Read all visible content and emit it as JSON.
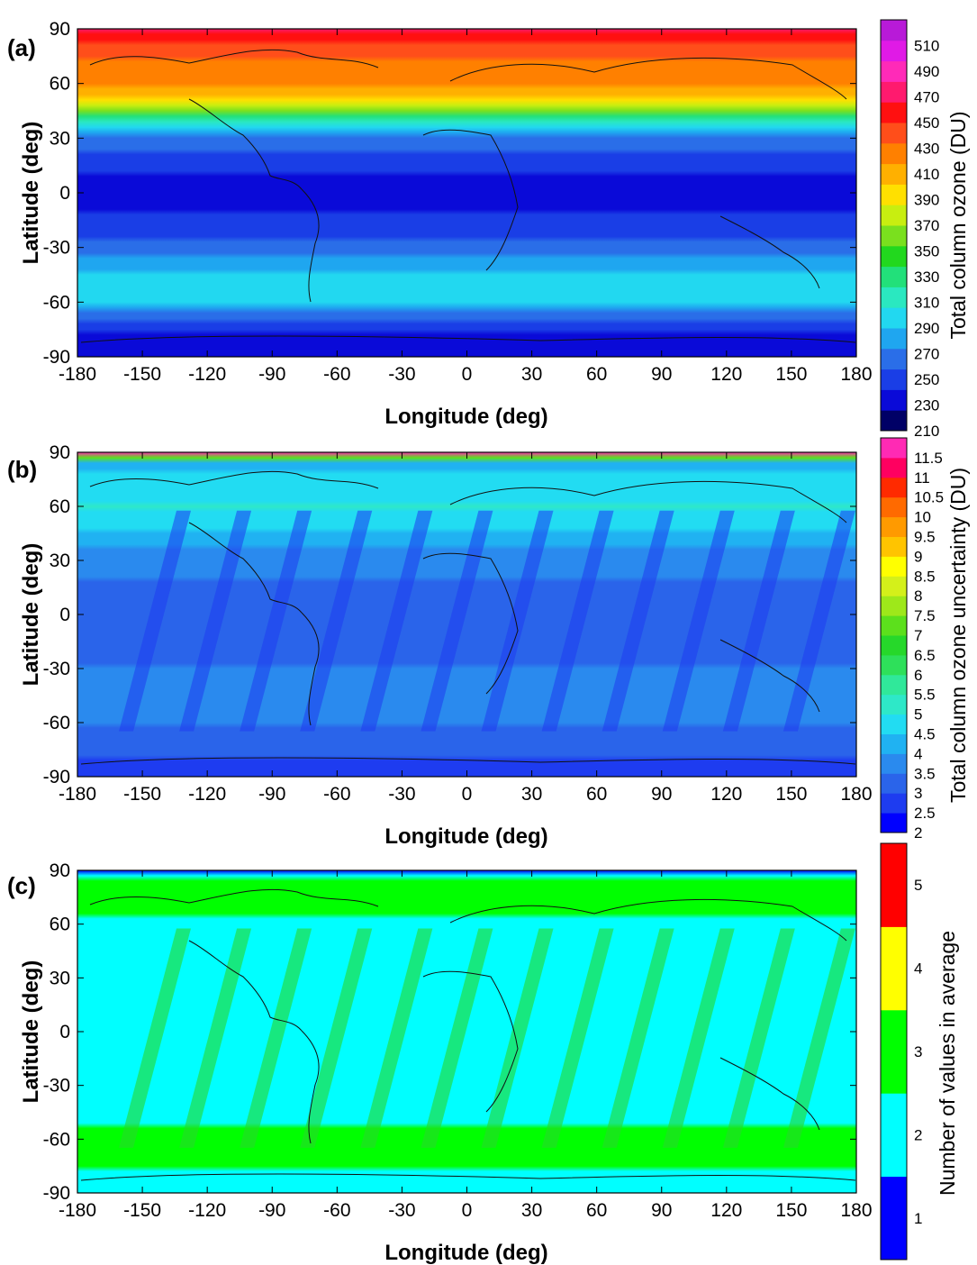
{
  "chart_data": [
    {
      "panel_label": "(a)",
      "type": "heatmap",
      "xlabel": "Longitude (deg)",
      "ylabel": "Latitude (deg)",
      "xlim": [
        -180,
        180
      ],
      "ylim": [
        -90,
        90
      ],
      "x_ticks": [
        "-180",
        "-150",
        "-120",
        "-90",
        "-60",
        "-30",
        "0",
        "30",
        "60",
        "90",
        "120",
        "150",
        "180"
      ],
      "y_ticks": [
        "90",
        "60",
        "30",
        "0",
        "-30",
        "-60",
        "-90"
      ],
      "colorbar": {
        "title": "Total column ozone (DU)",
        "range": [
          210,
          530
        ],
        "labels": [
          "510",
          "490",
          "470",
          "450",
          "430",
          "410",
          "390",
          "370",
          "350",
          "330",
          "310",
          "290",
          "270",
          "250",
          "230",
          "210"
        ],
        "colors": [
          "#000066",
          "#0a0ad8",
          "#1a3ee6",
          "#2a6ee8",
          "#1fa6f0",
          "#22d8f0",
          "#2ae8c0",
          "#22e07a",
          "#22d81e",
          "#7ae01e",
          "#c8ee10",
          "#ffe000",
          "#ffb000",
          "#ff8000",
          "#ff4e1a",
          "#ff1010",
          "#ff1a6e",
          "#ff2ab8",
          "#e01ae6",
          "#b81ad8"
        ]
      },
      "zonal_profile": {
        "lat": [
          -90,
          -80,
          -70,
          -60,
          -50,
          -40,
          -30,
          -20,
          -10,
          0,
          10,
          20,
          30,
          40,
          50,
          60,
          70,
          80,
          90
        ],
        "value": [
          230,
          235,
          255,
          295,
          300,
          282,
          262,
          250,
          242,
          240,
          242,
          252,
          270,
          320,
          390,
          420,
          430,
          445,
          470
        ]
      }
    },
    {
      "panel_label": "(b)",
      "type": "heatmap",
      "xlabel": "Longitude (deg)",
      "ylabel": "Latitude (deg)",
      "xlim": [
        -180,
        180
      ],
      "ylim": [
        -90,
        90
      ],
      "x_ticks": [
        "-180",
        "-150",
        "-120",
        "-90",
        "-60",
        "-30",
        "0",
        "30",
        "60",
        "90",
        "120",
        "150",
        "180"
      ],
      "y_ticks": [
        "90",
        "60",
        "30",
        "0",
        "-30",
        "-60",
        "-90"
      ],
      "colorbar": {
        "title": "Total column ozone uncertainty (DU)",
        "range": [
          2,
          12
        ],
        "labels": [
          "11.5",
          "11",
          "10.5",
          "10",
          "9.5",
          "9",
          "8.5",
          "8",
          "7.5",
          "7",
          "6.5",
          "6",
          "5.5",
          "5",
          "4.5",
          "4",
          "3.5",
          "3",
          "2.5",
          "2"
        ],
        "colors": [
          "#0000ff",
          "#1e3cf0",
          "#2a64ea",
          "#2a8aee",
          "#20b2f2",
          "#22dcf2",
          "#2ee8c8",
          "#30e89a",
          "#2ee05a",
          "#26d82a",
          "#5ce01c",
          "#9ee81a",
          "#d4f01a",
          "#ffff00",
          "#ffc400",
          "#ff9a00",
          "#ff6a00",
          "#ff2a00",
          "#ff0060",
          "#ff2ab4"
        ]
      },
      "zonal_profile": {
        "lat": [
          -90,
          -80,
          -70,
          -60,
          -45,
          -30,
          -15,
          0,
          15,
          30,
          45,
          60,
          75,
          85,
          90
        ],
        "value": [
          2.9,
          3.0,
          3.2,
          3.6,
          3.7,
          3.5,
          3.4,
          3.3,
          3.4,
          3.7,
          4.4,
          5.0,
          4.6,
          4.4,
          11.5
        ]
      }
    },
    {
      "panel_label": "(c)",
      "type": "heatmap",
      "xlabel": "Longitude (deg)",
      "ylabel": "Latitude (deg)",
      "xlim": [
        -180,
        180
      ],
      "ylim": [
        -90,
        90
      ],
      "x_ticks": [
        "-180",
        "-150",
        "-120",
        "-90",
        "-60",
        "-30",
        "0",
        "30",
        "60",
        "90",
        "120",
        "150",
        "180"
      ],
      "y_ticks": [
        "90",
        "60",
        "30",
        "0",
        "-30",
        "-60",
        "-90"
      ],
      "colorbar": {
        "title": "Number of values in average",
        "range": [
          0.5,
          5.5
        ],
        "labels": [
          "5",
          "4",
          "3",
          "2",
          "1"
        ],
        "colors": [
          "#0000ff",
          "#00ffff",
          "#00ff00",
          "#ffff00",
          "#ff0000"
        ]
      },
      "zonal_profile": {
        "lat": [
          -90,
          -84,
          -70,
          -60,
          -45,
          -30,
          -15,
          0,
          15,
          30,
          45,
          60,
          70,
          84,
          90
        ],
        "value": [
          2,
          2,
          3,
          3,
          2,
          2,
          2,
          2,
          2,
          2,
          2,
          2,
          3,
          3,
          1
        ]
      }
    }
  ]
}
